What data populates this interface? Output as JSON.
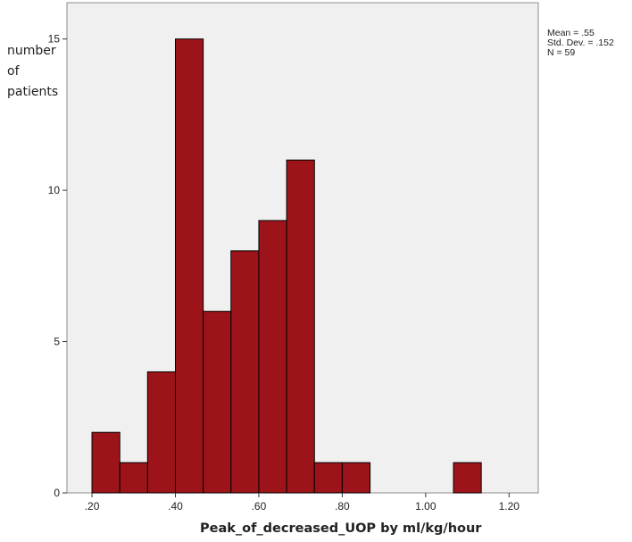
{
  "chart_data": {
    "type": "bar",
    "subtype": "histogram",
    "bin_width": 0.0667,
    "bin_starts": [
      0.2,
      0.2667,
      0.3333,
      0.4,
      0.4667,
      0.5333,
      0.6,
      0.6667,
      0.7333,
      0.8,
      0.8667,
      0.9333,
      1.0,
      1.0667
    ],
    "values": [
      2,
      1,
      4,
      15,
      6,
      8,
      9,
      11,
      1,
      1,
      0,
      0,
      0,
      1
    ],
    "xlim": [
      0.14,
      1.27
    ],
    "ylim": [
      0,
      16.2
    ],
    "xticks": [
      0.2,
      0.4,
      0.6,
      0.8,
      1.0,
      1.2
    ],
    "xtick_labels": [
      ".20",
      ".40",
      ".60",
      ".80",
      "1.00",
      "1.20"
    ],
    "yticks": [
      0,
      5,
      10,
      15
    ],
    "ytick_labels": [
      "0",
      "5",
      "10",
      "15"
    ],
    "ylabel_lines": [
      "number",
      "of",
      "patients"
    ],
    "xlabel_main": "Peak_of_decreased_UOP",
    "xlabel_unit": "by ml/kg/hour",
    "stats": {
      "mean": "Mean = .55",
      "std": "Std. Dev. = .152",
      "n": "N = 59"
    },
    "bar_color": "#9c1419",
    "bar_edge_color": "#000000",
    "plot_background": "#f0f0f0",
    "grid": false
  }
}
